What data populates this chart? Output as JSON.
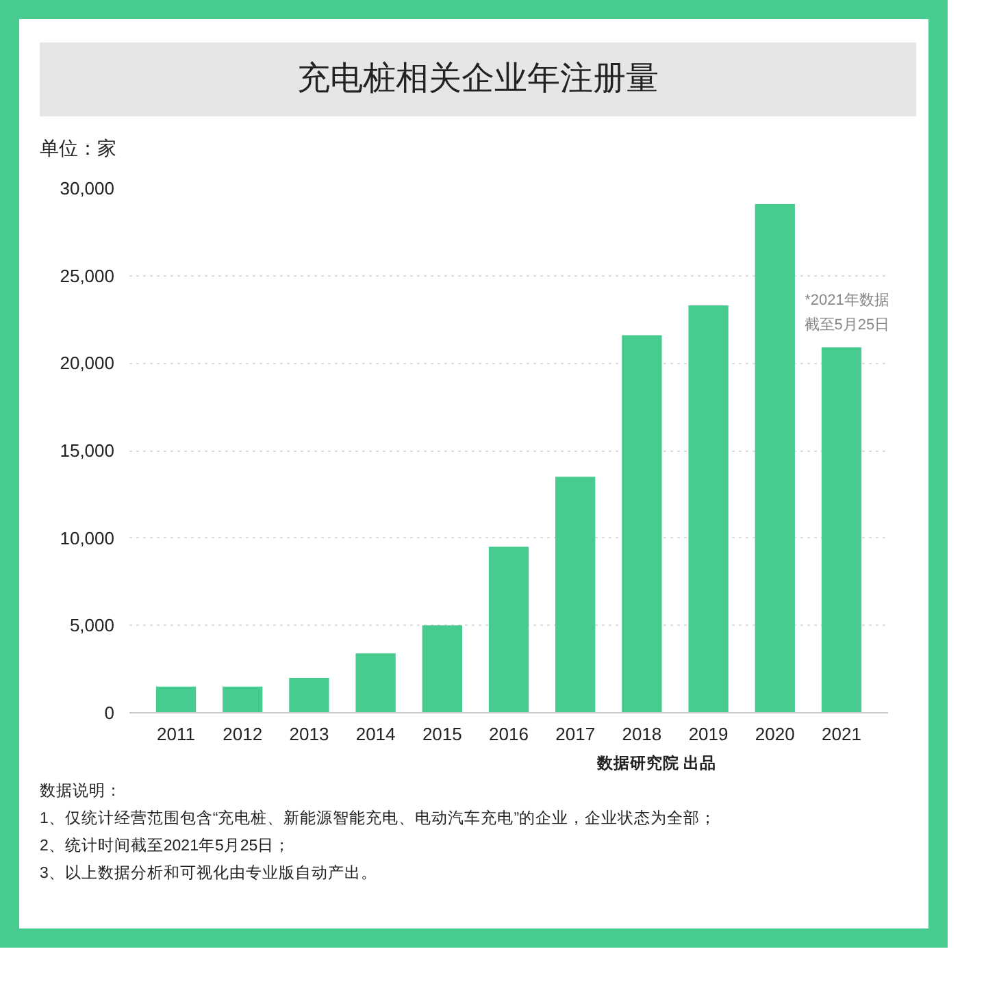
{
  "chart_data": {
    "type": "bar",
    "title": "充电桩相关企业年注册量",
    "ylabel": "单位：家",
    "categories": [
      "2011",
      "2012",
      "2013",
      "2014",
      "2015",
      "2016",
      "2017",
      "2018",
      "2019",
      "2020",
      "2021"
    ],
    "values": [
      1500,
      1500,
      2000,
      3400,
      5000,
      9500,
      13500,
      21600,
      23300,
      29100,
      20900
    ],
    "color": "#48cb8e",
    "ylim": [
      0,
      30000
    ],
    "yticks": [
      0,
      {
        "value": 5000,
        "label": "5,000"
      },
      {
        "value": 10000,
        "label": "10,000"
      },
      {
        "value": 15000,
        "label": "15,000"
      },
      {
        "value": 20000,
        "label": "20,000"
      },
      {
        "value": 25000,
        "label": "25,000"
      },
      {
        "value": 30000,
        "label": "30,000"
      }
    ],
    "grid": "y",
    "annotations": [
      {
        "text": "*2021年数据",
        "x": "2021",
        "y": 20900
      },
      {
        "text": "截至5月25日",
        "x": "2021",
        "y": 20900
      },
      "数据说明：",
      "1、仅统计经营范围包含“充电桩、新能源智能充电、电动汽车充电”的企业，企业状态为全部；",
      "2、统计时间截至2021年5月25日；",
      "3、以上数据分析和可视化由专业版自动产出。",
      "数据研究院 出品"
    ]
  }
}
